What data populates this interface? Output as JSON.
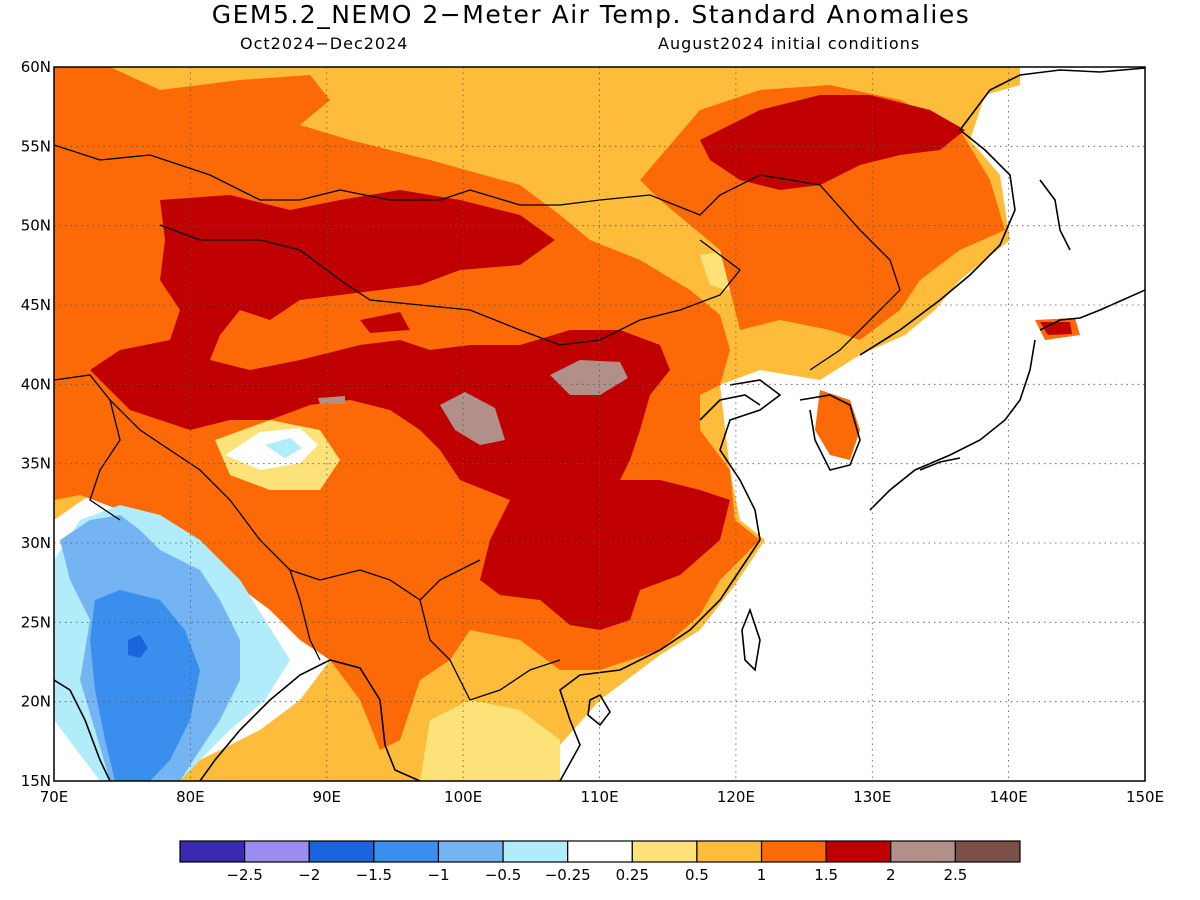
{
  "title": "GEM5.2_NEMO 2−Meter Air Temp. Standard Anomalies",
  "subtitle_left": "Oct2024−Dec2024",
  "subtitle_right": "August2024 initial conditions",
  "map": {
    "lon_range": [
      70,
      150
    ],
    "lat_range": [
      15,
      60
    ],
    "lon_ticks": [
      "70E",
      "80E",
      "90E",
      "100E",
      "110E",
      "120E",
      "130E",
      "140E",
      "150E"
    ],
    "lat_ticks": [
      "15N",
      "20N",
      "25N",
      "30N",
      "35N",
      "40N",
      "45N",
      "50N",
      "55N",
      "60N"
    ],
    "grid": "dotted"
  },
  "colorbar": {
    "colors": [
      "#3a2ab2",
      "#9b8cf2",
      "#1c64dc",
      "#3a8fee",
      "#75b4f2",
      "#b0ecf9",
      "#ffffff",
      "#fde27a",
      "#fdbd3b",
      "#fb6a06",
      "#c00000",
      "#b09089",
      "#7b5046"
    ],
    "labels": [
      "−2.5",
      "−2",
      "−1.5",
      "−1",
      "−0.5",
      "−0.25",
      "0.25",
      "0.5",
      "1",
      "1.5",
      "2",
      "2.5"
    ]
  }
}
